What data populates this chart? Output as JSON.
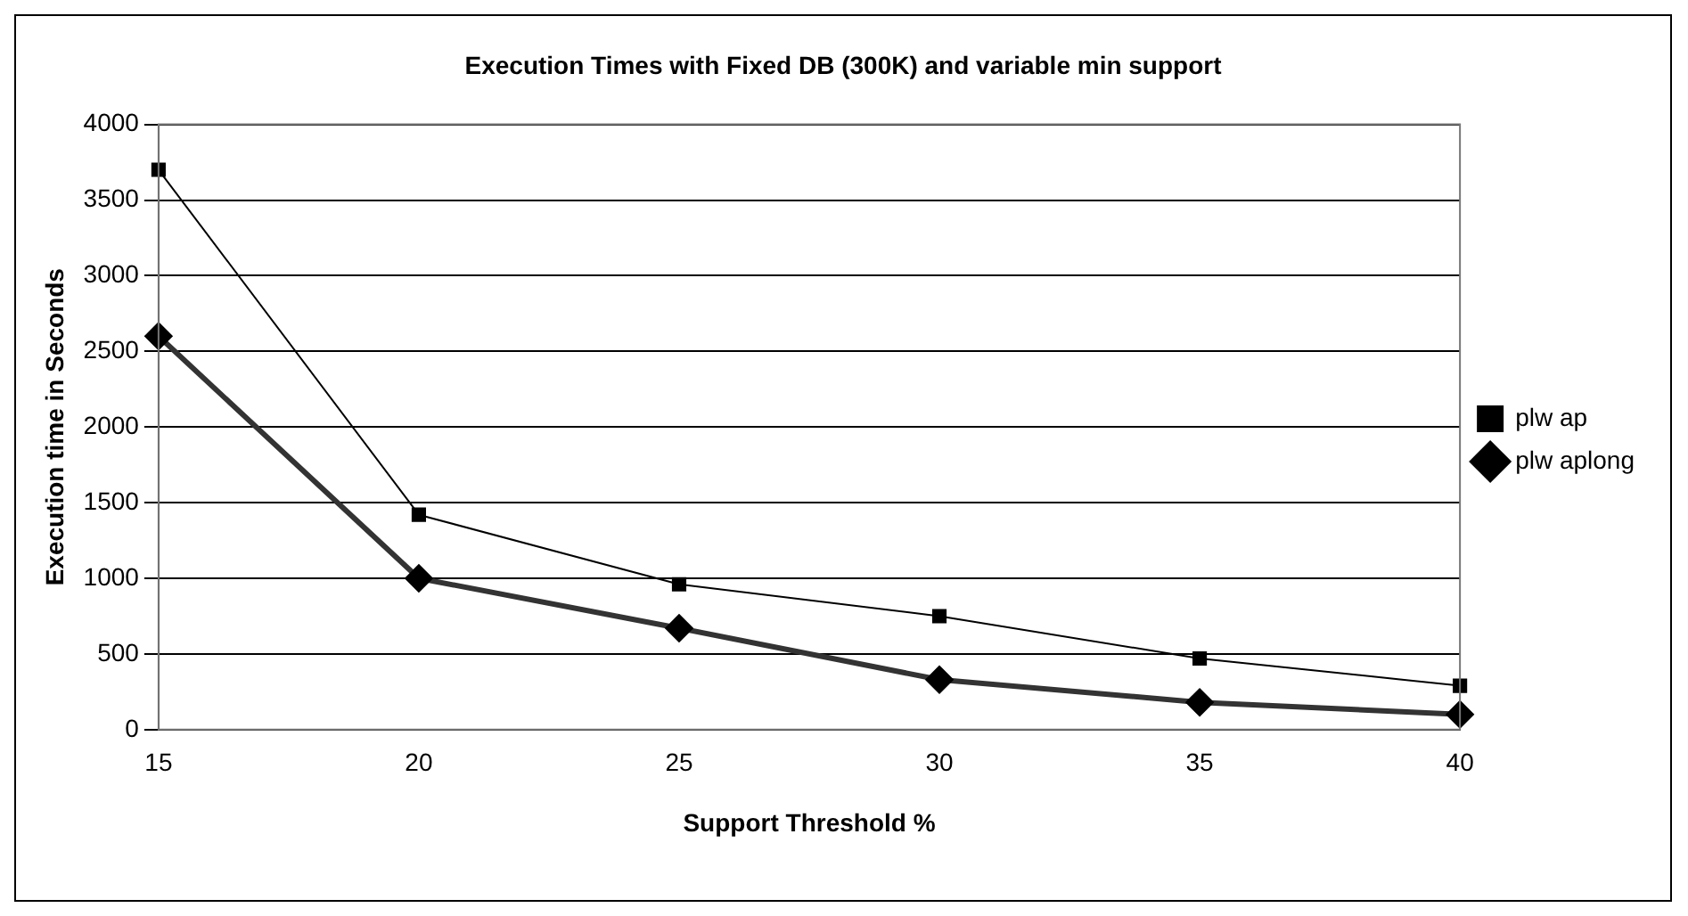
{
  "chart_data": {
    "type": "line",
    "title": "Execution Times with Fixed DB (300K) and variable min support",
    "xlabel": "Support Threshold %",
    "ylabel": "Execution time in Seconds",
    "x": [
      15,
      20,
      25,
      30,
      35,
      40
    ],
    "xlim": [
      15,
      40
    ],
    "xticks": [
      15,
      20,
      25,
      30,
      35,
      40
    ],
    "ylim": [
      0,
      4000
    ],
    "yticks": [
      0,
      500,
      1000,
      1500,
      2000,
      2500,
      3000,
      3500,
      4000
    ],
    "series": [
      {
        "name": "plw ap",
        "color": "#000000",
        "values": [
          3700,
          1420,
          960,
          750,
          470,
          290
        ],
        "marker": "square"
      },
      {
        "name": "plw aplong",
        "color": "#333333",
        "values": [
          2600,
          1000,
          670,
          330,
          180,
          100
        ],
        "marker": "diamond"
      }
    ],
    "grid": "y",
    "legend": "right",
    "line_style": "solid"
  }
}
